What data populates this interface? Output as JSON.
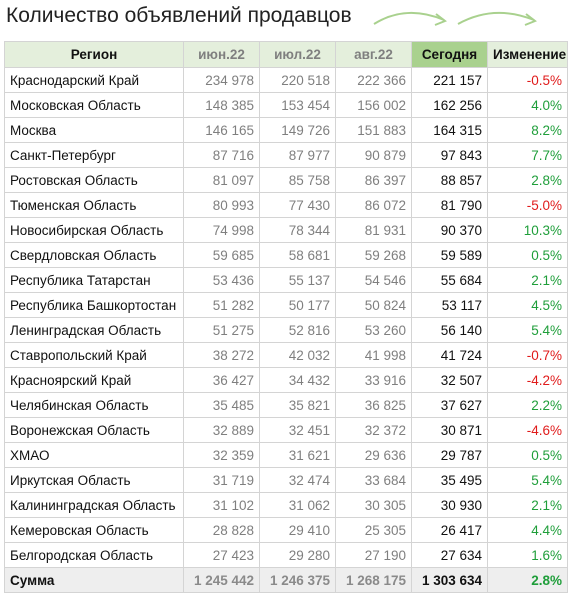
{
  "title": "Количество объявлений продавцов",
  "colors": {
    "header_bg": "#e4efdc",
    "today_header_bg": "#a9d18e",
    "positive": "#1f9e3a",
    "negative": "#e01b1b",
    "arrow": "#a9d18e"
  },
  "decorations": [
    "arrow-icon",
    "arrow-icon"
  ],
  "chart_data": {
    "type": "table",
    "columns": [
      "Регион",
      "июн.22",
      "июл.22",
      "авг.22",
      "Сегодня",
      "Изменение"
    ],
    "rows": [
      [
        "Краснодарский Край",
        "234 978",
        "220 518",
        "222 366",
        "221 157",
        "-0.5%"
      ],
      [
        "Московская Область",
        "148 385",
        "153 454",
        "156 002",
        "162 256",
        "4.0%"
      ],
      [
        "Москва",
        "146 165",
        "149 726",
        "151 883",
        "164 315",
        "8.2%"
      ],
      [
        "Санкт-Петербург",
        "87 716",
        "87 977",
        "90 879",
        "97 843",
        "7.7%"
      ],
      [
        "Ростовская Область",
        "81 097",
        "85 758",
        "86 397",
        "88 857",
        "2.8%"
      ],
      [
        "Тюменская Область",
        "80 993",
        "77 430",
        "86 072",
        "81 790",
        "-5.0%"
      ],
      [
        "Новосибирская Область",
        "74 998",
        "78 344",
        "81 931",
        "90 370",
        "10.3%"
      ],
      [
        "Свердловская Область",
        "59 685",
        "58 681",
        "59 268",
        "59 589",
        "0.5%"
      ],
      [
        "Республика Татарстан",
        "53 436",
        "55 137",
        "54 546",
        "55 684",
        "2.1%"
      ],
      [
        "Республика Башкортостан",
        "51 282",
        "50 177",
        "50 824",
        "53 117",
        "4.5%"
      ],
      [
        "Ленинградская Область",
        "51 275",
        "52 816",
        "53 260",
        "56 140",
        "5.4%"
      ],
      [
        "Ставропольский Край",
        "38 272",
        "42 032",
        "41 998",
        "41 724",
        "-0.7%"
      ],
      [
        "Красноярский Край",
        "36 427",
        "34 432",
        "33 916",
        "32 507",
        "-4.2%"
      ],
      [
        "Челябинская Область",
        "35 485",
        "35 821",
        "36 825",
        "37 627",
        "2.2%"
      ],
      [
        "Воронежская Область",
        "32 889",
        "32 451",
        "32 372",
        "30 871",
        "-4.6%"
      ],
      [
        "ХМАО",
        "32 359",
        "31 621",
        "29 636",
        "29 787",
        "0.5%"
      ],
      [
        "Иркутская Область",
        "31 719",
        "32 474",
        "33 684",
        "35 495",
        "5.4%"
      ],
      [
        "Калининградская Область",
        "31 102",
        "31 062",
        "30 305",
        "30 930",
        "2.1%"
      ],
      [
        "Кемеровская Область",
        "28 828",
        "29 410",
        "25 305",
        "26 417",
        "4.4%"
      ],
      [
        "Белгородская Область",
        "27 423",
        "29 280",
        "27 190",
        "27 634",
        "1.6%"
      ]
    ],
    "total": [
      "Сумма",
      "1 245 442",
      "1 246 375",
      "1 268 175",
      "1 303 634",
      "2.8%"
    ]
  }
}
